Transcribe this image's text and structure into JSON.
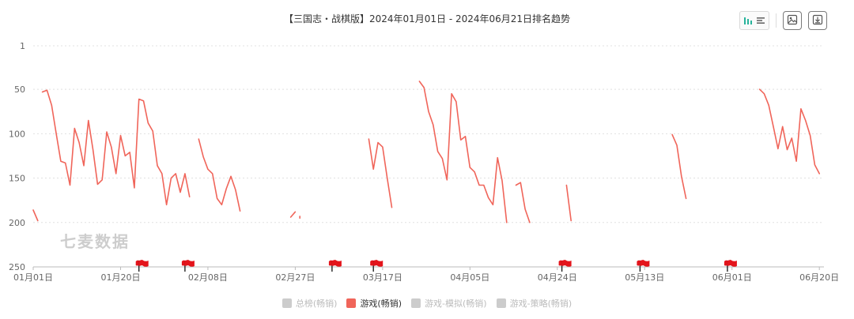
{
  "title": "【三国志・战棋版】2024年01月01日 - 2024年06月21日排名趋势",
  "watermark": "七麦数据",
  "toolbar": {
    "icons": [
      "bar-view-icon",
      "list-view-icon",
      "save-image-icon",
      "download-icon"
    ]
  },
  "legend": [
    {
      "label": "总榜(畅销)",
      "color": "#cccccc",
      "active": false
    },
    {
      "label": "游戏(畅销)",
      "color": "#f0655a",
      "active": true
    },
    {
      "label": "游戏-模拟(畅销)",
      "color": "#cccccc",
      "active": false
    },
    {
      "label": "游戏-策略(畅销)",
      "color": "#cccccc",
      "active": false
    }
  ],
  "chart_data": {
    "type": "line",
    "title": "【三国志・战棋版】2024年01月01日 - 2024年06月21日排名趋势",
    "x_start": "2024-01-01",
    "x_end": "2024-06-21",
    "x_tick_labels": [
      "01月01日",
      "01月20日",
      "02月08日",
      "02月27日",
      "03月17日",
      "04月05日",
      "04月24日",
      "05月13日",
      "06月01日",
      "06月20日"
    ],
    "y_axis": {
      "inverted": true,
      "min": 1,
      "max": 250,
      "ticks": [
        1,
        50,
        100,
        150,
        200,
        250
      ]
    },
    "grid": true,
    "legend_position": "bottom",
    "series": [
      {
        "name": "游戏(畅销)",
        "color": "#f0655a",
        "segments": [
          [
            [
              "2024-01-01",
              186
            ],
            [
              "2024-01-02",
              198
            ]
          ],
          [
            [
              "2024-01-03",
              53
            ],
            [
              "2024-01-04",
              51
            ],
            [
              "2024-01-05",
              68
            ],
            [
              "2024-01-06",
              100
            ],
            [
              "2024-01-07",
              131
            ],
            [
              "2024-01-08",
              133
            ],
            [
              "2024-01-09",
              158
            ],
            [
              "2024-01-10",
              94
            ],
            [
              "2024-01-11",
              110
            ],
            [
              "2024-01-12",
              136
            ],
            [
              "2024-01-13",
              85
            ],
            [
              "2024-01-14",
              118
            ],
            [
              "2024-01-15",
              157
            ],
            [
              "2024-01-16",
              152
            ],
            [
              "2024-01-17",
              98
            ],
            [
              "2024-01-18",
              115
            ],
            [
              "2024-01-19",
              145
            ],
            [
              "2024-01-20",
              102
            ],
            [
              "2024-01-21",
              125
            ],
            [
              "2024-01-22",
              121
            ],
            [
              "2024-01-23",
              161
            ],
            [
              "2024-01-24",
              61
            ],
            [
              "2024-01-25",
              63
            ],
            [
              "2024-01-26",
              88
            ],
            [
              "2024-01-27",
              97
            ],
            [
              "2024-01-28",
              136
            ],
            [
              "2024-01-29",
              145
            ],
            [
              "2024-01-30",
              180
            ],
            [
              "2024-01-31",
              150
            ],
            [
              "2024-02-01",
              145
            ],
            [
              "2024-02-02",
              166
            ],
            [
              "2024-02-03",
              145
            ],
            [
              "2024-02-04",
              171
            ]
          ],
          [
            [
              "2024-02-06",
              106
            ],
            [
              "2024-02-07",
              126
            ],
            [
              "2024-02-08",
              140
            ],
            [
              "2024-02-09",
              145
            ],
            [
              "2024-02-10",
              173
            ],
            [
              "2024-02-11",
              180
            ],
            [
              "2024-02-12",
              162
            ],
            [
              "2024-02-13",
              148
            ],
            [
              "2024-02-14",
              163
            ],
            [
              "2024-02-15",
              187
            ]
          ],
          [
            [
              "2024-02-26",
              194
            ],
            [
              "2024-02-27",
              188
            ]
          ],
          [
            [
              "2024-02-28",
              193
            ],
            [
              "2024-02-28",
              195
            ]
          ],
          [
            [
              "2024-03-14",
              106
            ],
            [
              "2024-03-15",
              140
            ],
            [
              "2024-03-16",
              110
            ],
            [
              "2024-03-17",
              115
            ],
            [
              "2024-03-18",
              150
            ],
            [
              "2024-03-19",
              183
            ]
          ],
          [
            [
              "2024-03-25",
              41
            ],
            [
              "2024-03-26",
              48
            ],
            [
              "2024-03-27",
              75
            ],
            [
              "2024-03-28",
              90
            ],
            [
              "2024-03-29",
              120
            ],
            [
              "2024-03-30",
              128
            ],
            [
              "2024-03-31",
              152
            ],
            [
              "2024-04-01",
              55
            ],
            [
              "2024-04-02",
              64
            ],
            [
              "2024-04-03",
              107
            ],
            [
              "2024-04-04",
              103
            ],
            [
              "2024-04-05",
              138
            ],
            [
              "2024-04-06",
              143
            ],
            [
              "2024-04-07",
              158
            ],
            [
              "2024-04-08",
              158
            ],
            [
              "2024-04-09",
              172
            ],
            [
              "2024-04-10",
              180
            ],
            [
              "2024-04-11",
              127
            ],
            [
              "2024-04-12",
              153
            ],
            [
              "2024-04-13",
              200
            ]
          ],
          [
            [
              "2024-04-15",
              158
            ],
            [
              "2024-04-16",
              155
            ],
            [
              "2024-04-17",
              185
            ],
            [
              "2024-04-18",
              200
            ]
          ],
          [
            [
              "2024-04-26",
              158
            ],
            [
              "2024-04-27",
              198
            ]
          ],
          [
            [
              "2024-05-19",
              101
            ],
            [
              "2024-05-20",
              113
            ],
            [
              "2024-05-21",
              148
            ],
            [
              "2024-05-22",
              173
            ]
          ],
          [
            [
              "2024-06-07",
              50
            ],
            [
              "2024-06-08",
              55
            ],
            [
              "2024-06-09",
              68
            ],
            [
              "2024-06-10",
              92
            ],
            [
              "2024-06-11",
              117
            ],
            [
              "2024-06-12",
              92
            ],
            [
              "2024-06-13",
              118
            ],
            [
              "2024-06-14",
              105
            ],
            [
              "2024-06-15",
              131
            ],
            [
              "2024-06-16",
              72
            ],
            [
              "2024-06-17",
              85
            ],
            [
              "2024-06-18",
              102
            ],
            [
              "2024-06-19",
              135
            ],
            [
              "2024-06-20",
              145
            ]
          ]
        ]
      }
    ],
    "markers": {
      "type": "flag",
      "color": "#e4141b",
      "dates": [
        "2024-01-24",
        "2024-02-03",
        "2024-03-06",
        "2024-03-15",
        "2024-04-25",
        "2024-05-12",
        "2024-05-31"
      ]
    }
  }
}
